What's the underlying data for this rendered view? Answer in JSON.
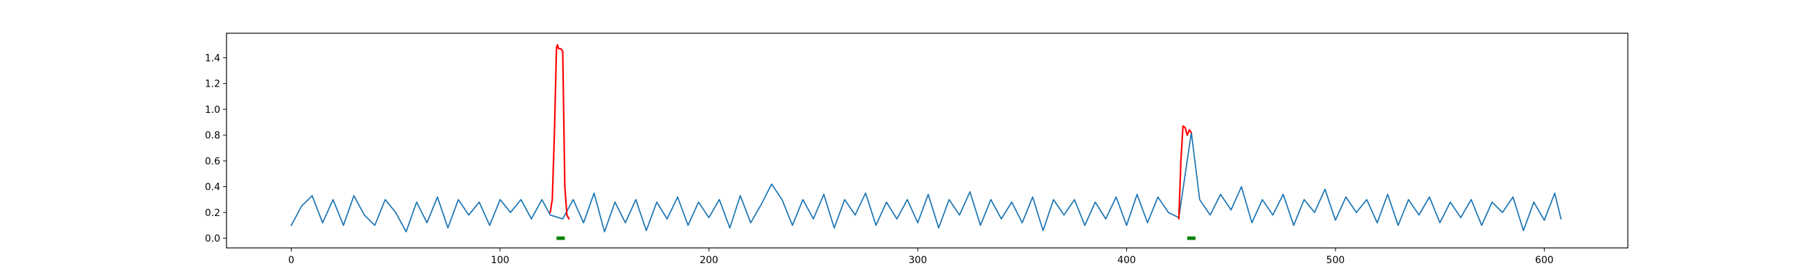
{
  "chart_data": {
    "type": "line",
    "title": "",
    "xlabel": "",
    "ylabel": "",
    "xlim": [
      -31,
      640
    ],
    "ylim": [
      -0.075,
      1.59
    ],
    "grid": false,
    "x_ticks": [
      0,
      100,
      200,
      300,
      400,
      500,
      600
    ],
    "y_ticks": [
      0.0,
      0.2,
      0.4,
      0.6,
      0.8,
      1.0,
      1.2,
      1.4
    ],
    "x_tick_labels": [
      "0",
      "100",
      "200",
      "300",
      "400",
      "500",
      "600"
    ],
    "y_tick_labels": [
      "0.0",
      "0.2",
      "0.4",
      "0.6",
      "0.8",
      "1.0",
      "1.2",
      "1.4"
    ],
    "series": [
      {
        "role": "signal",
        "color": "#1f77b4",
        "x": [
          0,
          5,
          10,
          15,
          20,
          25,
          30,
          35,
          40,
          45,
          50,
          55,
          60,
          65,
          70,
          75,
          80,
          85,
          90,
          95,
          100,
          105,
          110,
          115,
          120,
          124,
          130,
          135,
          140,
          145,
          150,
          155,
          160,
          165,
          170,
          175,
          180,
          185,
          190,
          195,
          200,
          205,
          210,
          215,
          220,
          225,
          230,
          235,
          240,
          245,
          250,
          255,
          260,
          265,
          270,
          275,
          280,
          285,
          290,
          295,
          300,
          305,
          310,
          315,
          320,
          325,
          330,
          335,
          340,
          345,
          350,
          355,
          360,
          365,
          370,
          375,
          380,
          385,
          390,
          395,
          400,
          405,
          410,
          415,
          420,
          425,
          431,
          435,
          440,
          445,
          450,
          455,
          460,
          465,
          470,
          475,
          480,
          485,
          490,
          495,
          500,
          505,
          510,
          515,
          520,
          525,
          530,
          535,
          540,
          545,
          550,
          555,
          560,
          565,
          570,
          575,
          580,
          585,
          590,
          595,
          600,
          605,
          608
        ],
        "y": [
          0.1,
          0.25,
          0.33,
          0.12,
          0.3,
          0.1,
          0.33,
          0.18,
          0.1,
          0.3,
          0.2,
          0.05,
          0.28,
          0.12,
          0.32,
          0.08,
          0.3,
          0.18,
          0.28,
          0.1,
          0.3,
          0.2,
          0.3,
          0.15,
          0.3,
          0.18,
          0.15,
          0.3,
          0.12,
          0.35,
          0.05,
          0.28,
          0.12,
          0.3,
          0.06,
          0.28,
          0.15,
          0.32,
          0.1,
          0.28,
          0.16,
          0.3,
          0.08,
          0.33,
          0.12,
          0.26,
          0.42,
          0.3,
          0.1,
          0.3,
          0.15,
          0.34,
          0.08,
          0.3,
          0.18,
          0.35,
          0.1,
          0.28,
          0.15,
          0.3,
          0.12,
          0.34,
          0.08,
          0.3,
          0.18,
          0.36,
          0.1,
          0.3,
          0.15,
          0.28,
          0.12,
          0.32,
          0.06,
          0.3,
          0.18,
          0.3,
          0.1,
          0.28,
          0.15,
          0.32,
          0.1,
          0.34,
          0.12,
          0.32,
          0.2,
          0.16,
          0.82,
          0.3,
          0.18,
          0.34,
          0.22,
          0.4,
          0.12,
          0.3,
          0.18,
          0.34,
          0.1,
          0.3,
          0.2,
          0.38,
          0.14,
          0.32,
          0.2,
          0.3,
          0.12,
          0.34,
          0.1,
          0.3,
          0.18,
          0.32,
          0.12,
          0.28,
          0.16,
          0.3,
          0.1,
          0.28,
          0.2,
          0.32,
          0.06,
          0.28,
          0.14,
          0.35,
          0.15
        ]
      },
      {
        "role": "anomaly-1",
        "color": "#ff0000",
        "x": [
          124,
          125,
          126,
          127,
          127.5,
          128,
          129,
          130,
          131,
          132,
          133
        ],
        "y": [
          0.2,
          0.3,
          0.8,
          1.48,
          1.5,
          1.47,
          1.47,
          1.45,
          0.4,
          0.18,
          0.15
        ]
      },
      {
        "role": "anomaly-2",
        "color": "#ff0000",
        "x": [
          425,
          426,
          427,
          428,
          429,
          430,
          431
        ],
        "y": [
          0.15,
          0.6,
          0.87,
          0.86,
          0.8,
          0.84,
          0.82
        ]
      },
      {
        "role": "marker-1",
        "color": "#008000",
        "x": [
          127,
          131
        ],
        "y": [
          0.0,
          0.0
        ]
      },
      {
        "role": "marker-2",
        "color": "#008000",
        "x": [
          429,
          433
        ],
        "y": [
          0.0,
          0.0
        ]
      }
    ]
  }
}
